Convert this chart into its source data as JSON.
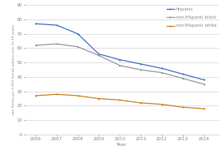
{
  "years": [
    2006,
    2007,
    2008,
    2009,
    2010,
    2011,
    2012,
    2013,
    2014
  ],
  "hispanic": [
    77,
    76,
    70,
    56,
    52,
    49,
    46,
    42,
    38
  ],
  "non_hispanic_black": [
    62,
    63,
    61,
    55,
    48,
    45,
    43,
    39,
    35
  ],
  "non_hispanic_white": [
    27,
    28,
    27,
    25,
    24,
    22,
    21,
    19,
    18
  ],
  "hispanic_color": "#4472C4",
  "black_color": "#999999",
  "white_color": "#C8842A",
  "legend_labels": [
    "Hispanic",
    "non-Hispanic black",
    "non-Hispanic white"
  ],
  "xlabel": "Year",
  "ylabel": "rate (births per 1,000 female adolescents 15-19 years)",
  "ylim": [
    0,
    90
  ],
  "yticks": [
    0,
    10,
    20,
    30,
    40,
    50,
    60,
    70,
    80,
    90
  ],
  "xlim": [
    2005.5,
    2014.7
  ],
  "background_color": "#ffffff",
  "spine_color": "#cccccc",
  "tick_color": "#888888"
}
